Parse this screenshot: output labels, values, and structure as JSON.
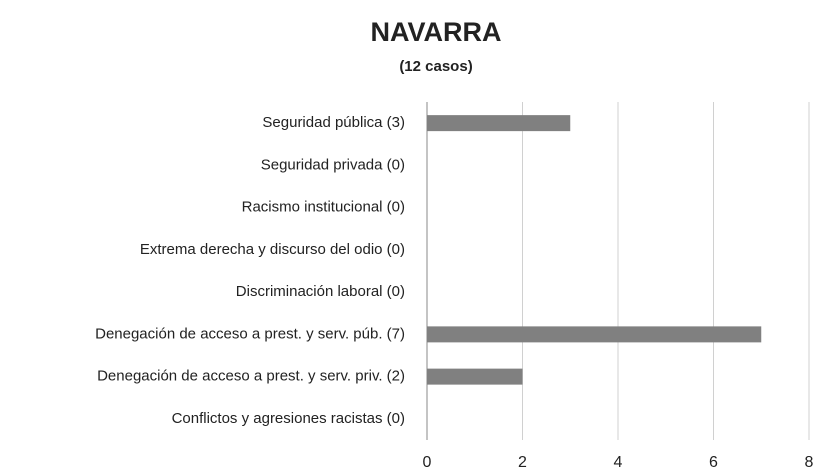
{
  "chart_data": {
    "type": "bar",
    "orientation": "horizontal",
    "title": "NAVARRA",
    "subtitle": "(12 casos)",
    "categories": [
      "Seguridad pública (3)",
      "Seguridad privada (0)",
      "Racismo institucional (0)",
      "Extrema derecha y discurso del odio (0)",
      "Discriminación laboral (0)",
      "Denegación de acceso a prest. y serv. púb. (7)",
      "Denegación de acceso a prest. y serv. priv. (2)",
      "Conflictos y agresiones racistas (0)"
    ],
    "values": [
      3,
      0,
      0,
      0,
      0,
      7,
      2,
      0
    ],
    "color": "#808080",
    "xlim": [
      0,
      8
    ],
    "xticks": [
      0,
      2,
      4,
      6,
      8
    ],
    "grid": true
  }
}
